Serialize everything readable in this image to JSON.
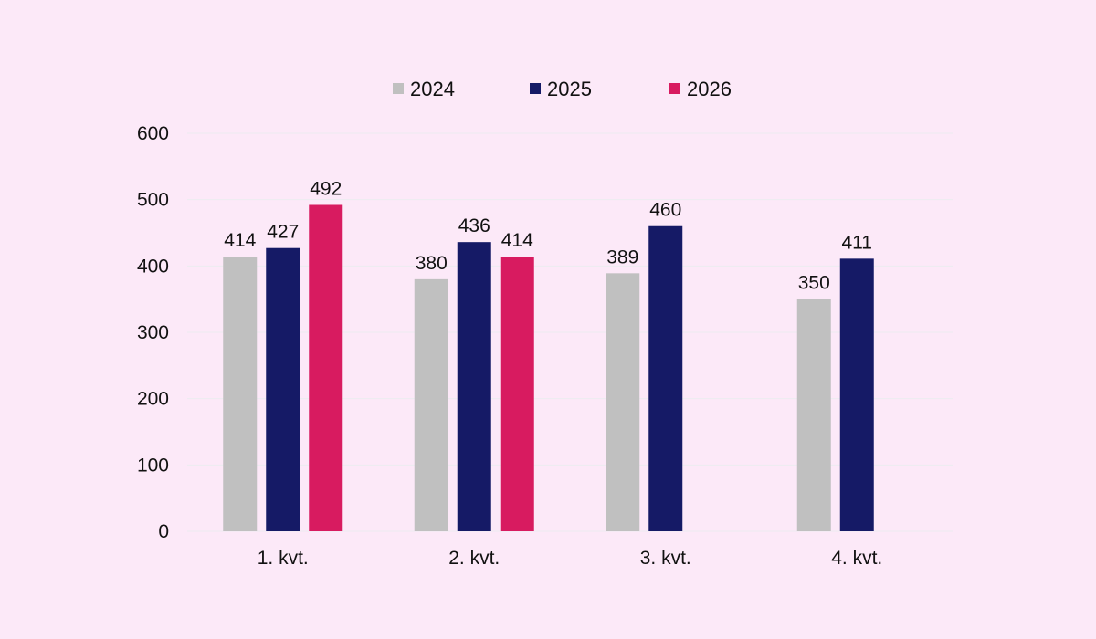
{
  "chart_data": {
    "type": "bar",
    "categories": [
      "1. kvt.",
      "2. kvt.",
      "3. kvt.",
      "4. kvt."
    ],
    "series": [
      {
        "name": "2024",
        "color": "#c0c0c0",
        "values": [
          414,
          380,
          389,
          350
        ]
      },
      {
        "name": "2025",
        "color": "#151a66",
        "values": [
          427,
          436,
          460,
          411
        ]
      },
      {
        "name": "2026",
        "color": "#d81b60",
        "values": [
          492,
          414,
          null,
          null
        ]
      }
    ],
    "title": "",
    "xlabel": "",
    "ylabel": "",
    "ylim": [
      0,
      600
    ],
    "yticks": [
      0,
      100,
      200,
      300,
      400,
      500,
      600
    ],
    "grid": true,
    "legend_position": "top-center"
  }
}
